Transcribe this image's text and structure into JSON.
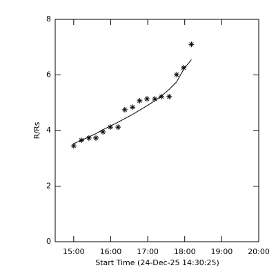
{
  "chart_data": {
    "type": "scatter",
    "x_label": "Start Time (24-Dec-25 14:30:25)",
    "y_label": "R/Rs",
    "x": [
      15.0,
      15.21,
      15.41,
      15.6,
      15.79,
      15.99,
      16.2,
      16.38,
      16.59,
      16.78,
      16.98,
      17.19,
      17.37,
      17.58,
      17.78,
      17.97,
      18.18
    ],
    "series": [
      {
        "color": "#000000",
        "marker": "asterisk",
        "values": [
          3.45,
          3.65,
          3.73,
          3.73,
          3.95,
          4.12,
          4.12,
          4.75,
          4.84,
          5.07,
          5.14,
          5.14,
          5.22,
          5.22,
          6.01,
          6.26,
          7.1
        ]
      },
      {
        "color": "#000000",
        "marker": "line",
        "values": [
          3.53,
          3.65,
          3.77,
          3.89,
          4.03,
          4.16,
          4.3,
          4.43,
          4.58,
          4.73,
          4.89,
          5.07,
          5.24,
          5.48,
          5.75,
          6.2,
          6.55
        ]
      }
    ],
    "xlim": [
      14.5,
      20.0
    ],
    "xticks": [
      {
        "value": 15,
        "label": "15:00"
      },
      {
        "value": 16,
        "label": "16:00"
      },
      {
        "value": 17,
        "label": "17:00"
      },
      {
        "value": 18,
        "label": "18:00"
      },
      {
        "value": 19,
        "label": "19:00"
      },
      {
        "value": 20,
        "label": "20:00"
      }
    ],
    "ylim": [
      0,
      8
    ],
    "yticks": [
      0,
      2,
      4,
      6,
      8
    ],
    "grid": false
  }
}
